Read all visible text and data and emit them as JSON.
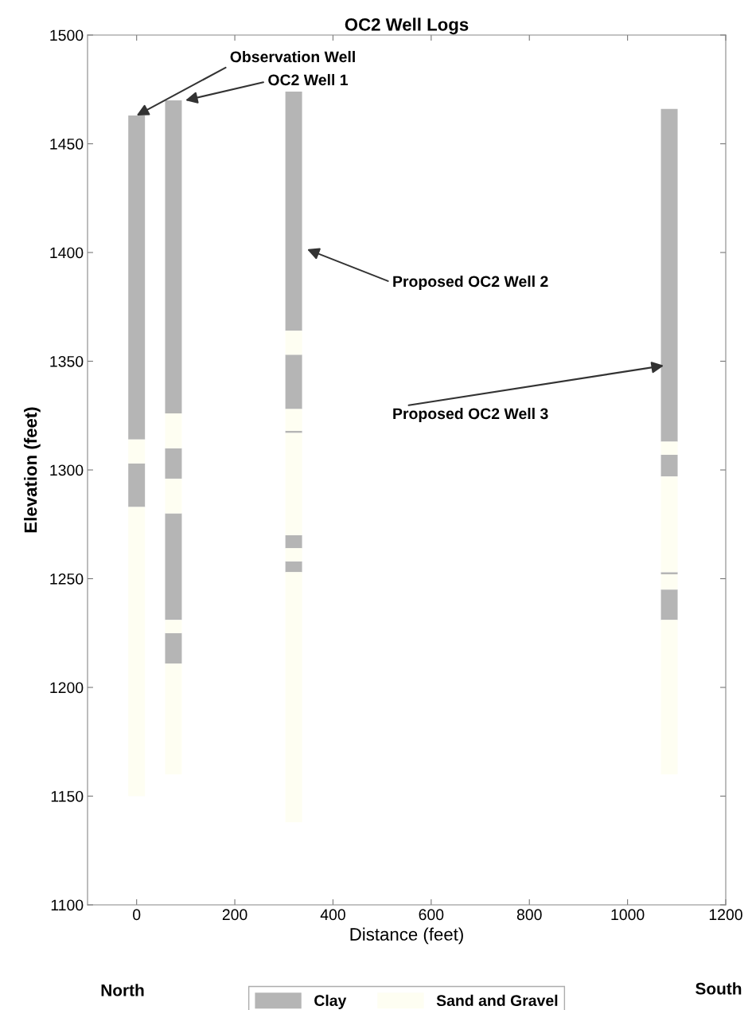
{
  "chart_data": {
    "type": "bar",
    "title": "OC2 Well Logs",
    "xlabel": "Distance (feet)",
    "ylabel": "Elevation (feet)",
    "x": [
      0,
      75,
      320,
      1085
    ],
    "series": [
      {
        "name": "Clay",
        "color": "#b5b5b5",
        "base": [
          1314,
          1326,
          1364,
          1313
        ],
        "values": [
          149,
          144,
          110,
          153
        ]
      },
      {
        "color": "#b5b5b5",
        "base": [
          1283,
          1296,
          1328,
          1297
        ],
        "values": [
          20,
          14,
          25,
          10
        ]
      },
      {
        "color": "#b5b5b5",
        "base": [
          null,
          1231,
          1317,
          1252
        ],
        "values": [
          null,
          49,
          1,
          1
        ]
      },
      {
        "color": "#b5b5b5",
        "base": [
          null,
          1211,
          1264,
          1231
        ],
        "values": [
          null,
          14,
          6,
          14
        ]
      },
      {
        "color": "#b5b5b5",
        "base": [
          null,
          null,
          1253,
          null
        ],
        "values": [
          null,
          null,
          5,
          null
        ]
      },
      {
        "name": "Sand and Gravel",
        "color": "#fefef2",
        "base": [
          1150,
          1160,
          1138,
          1160
        ],
        "values": [
          133,
          51,
          115,
          71
        ]
      },
      {
        "color": "#fefef2",
        "base": [
          1303,
          1225,
          1258,
          1245
        ],
        "values": [
          11,
          6,
          6,
          7
        ]
      },
      {
        "color": "#fefef2",
        "base": [
          null,
          1280,
          1270,
          1253
        ],
        "values": [
          null,
          16,
          47,
          44
        ]
      },
      {
        "color": "#fefef2",
        "base": [
          null,
          1310,
          1318,
          1307
        ],
        "values": [
          null,
          16,
          10,
          6
        ]
      },
      {
        "color": "#fefef2",
        "base": [
          null,
          null,
          1353,
          null
        ],
        "values": [
          null,
          null,
          11,
          null
        ]
      }
    ],
    "xlim": [
      -100,
      1200
    ],
    "xticks": [
      0,
      200,
      400,
      600,
      800,
      1000,
      1200
    ],
    "ylim": [
      1100,
      1500
    ],
    "yticks": [
      1100,
      1150,
      1200,
      1250,
      1300,
      1350,
      1400,
      1450,
      1500
    ],
    "grid": false,
    "legend": "bottom",
    "annotations": [
      {
        "text": "Observation Well",
        "x": 0,
        "y": 1463
      },
      "OC2 Well 1",
      "Proposed OC2 Well 2",
      "Proposed OC2 Well 3",
      "North",
      "South"
    ]
  }
}
